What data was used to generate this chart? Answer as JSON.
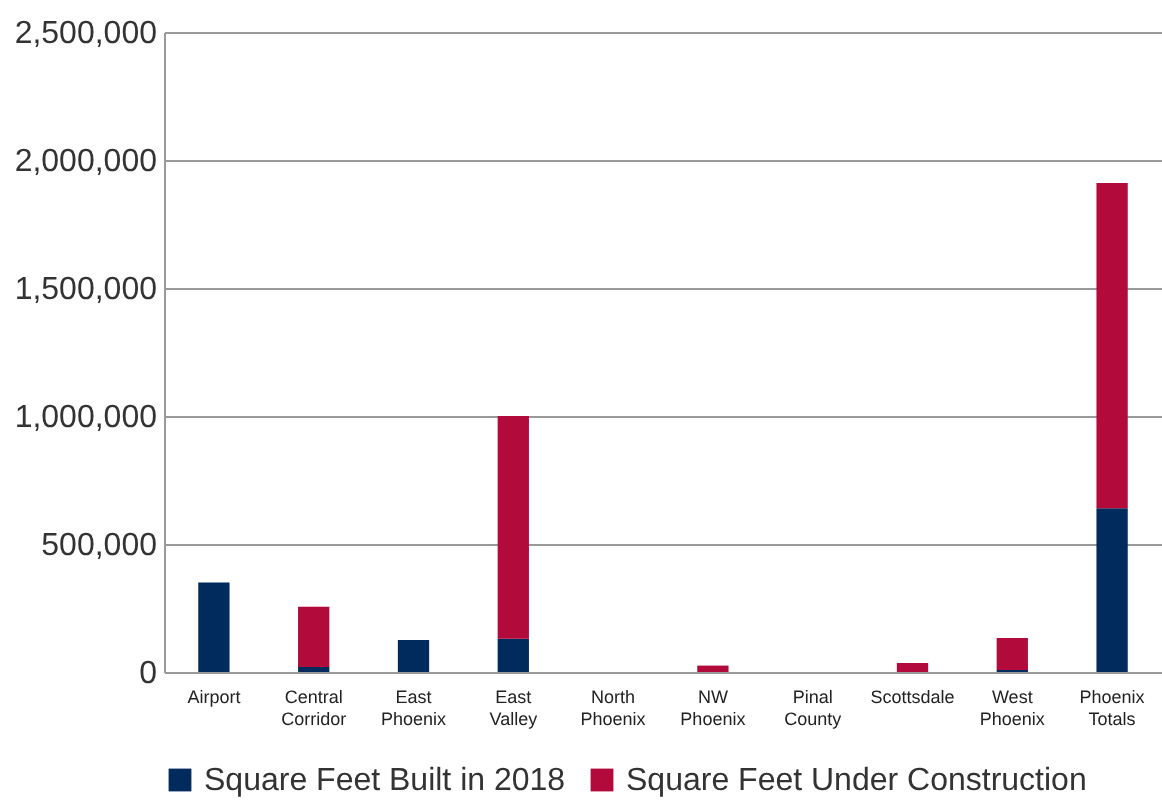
{
  "chart_data": {
    "type": "bar",
    "stacked": true,
    "categories": [
      "Airport",
      "Central Corridor",
      "East Phoenix",
      "East Valley",
      "North Phoenix",
      "NW Phoenix",
      "Pinal County",
      "Scottsdale",
      "West Phoenix",
      "Phoenix Totals"
    ],
    "series": [
      {
        "name": "Square Feet Built in 2018",
        "color": "#002b5c",
        "values": [
          350000,
          20000,
          125000,
          130000,
          0,
          0,
          0,
          0,
          8000,
          640000
        ]
      },
      {
        "name": "Square Feet Under Construction",
        "color": "#b20a3b",
        "values": [
          0,
          235000,
          0,
          870000,
          0,
          25000,
          0,
          35000,
          125000,
          1270000
        ]
      }
    ],
    "ylim": [
      0,
      2500000
    ],
    "yticks": [
      0,
      {
        "value": 500000,
        "label": "500,000"
      },
      {
        "value": 1000000,
        "label": "1,000,000"
      },
      {
        "value": 1500000,
        "label": "1,500,000"
      },
      {
        "value": 2000000,
        "label": "2,000,000"
      },
      {
        "value": 2500000,
        "label": "2,500,000"
      }
    ],
    "grid": "y",
    "legend": "bottom"
  }
}
